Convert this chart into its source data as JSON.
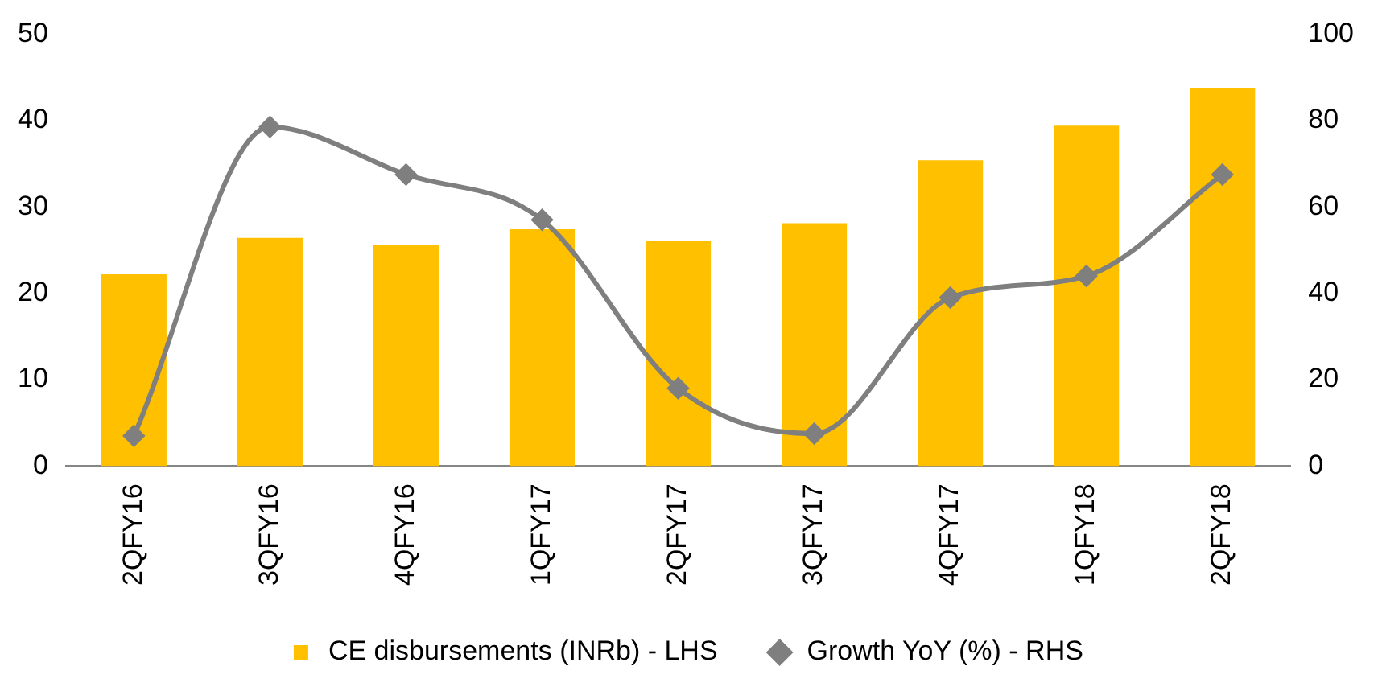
{
  "chart_data": {
    "type": "bar",
    "categories": [
      "2QFY16",
      "3QFY16",
      "4QFY16",
      "1QFY17",
      "2QFY17",
      "3QFY17",
      "4QFY17",
      "1QFY18",
      "2QFY18"
    ],
    "series": [
      {
        "name": "CE disbursements (INRb) - LHS",
        "color": "#ffc000",
        "values": [
          22.2,
          26.4,
          25.6,
          27.4,
          26.1,
          28.1,
          35.4,
          39.4,
          43.8
        ]
      },
      {
        "name": "Growth YoY (%) - RHS",
        "type": "line",
        "axis": "y2",
        "color": "#7f7f7f",
        "marker": "diamond",
        "line_style": "solid",
        "values": [
          7,
          78.5,
          67.5,
          57,
          18,
          7.5,
          39,
          44,
          67.5
        ]
      }
    ],
    "ylim": [
      0,
      50
    ],
    "yticks": [
      0,
      10,
      20,
      30,
      40,
      50
    ],
    "y2lim": [
      0,
      100
    ],
    "y2ticks": [
      0,
      20,
      40,
      60,
      80,
      100
    ],
    "grid": false,
    "legend": "bottom"
  }
}
